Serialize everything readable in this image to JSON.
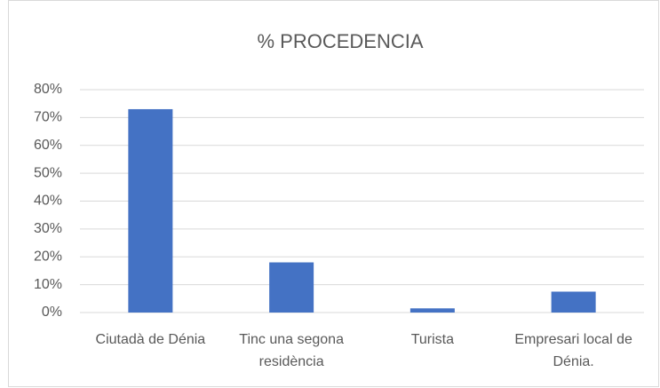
{
  "chart_data": {
    "type": "bar",
    "title": "% PROCEDENCIA",
    "categories": [
      "Ciutadà de Dénia",
      "Tinc una segona residència",
      "Turista",
      "Empresari local de Dénia."
    ],
    "values": [
      73,
      18,
      1.5,
      7.5
    ],
    "color": "#4472c4",
    "ylim": [
      0,
      80
    ],
    "yticks": [
      {
        "value": 0,
        "label": "0%"
      },
      {
        "value": 10,
        "label": "10%"
      },
      {
        "value": 20,
        "label": "20%"
      },
      {
        "value": 30,
        "label": "30%"
      },
      {
        "value": 40,
        "label": "40%"
      },
      {
        "value": 50,
        "label": "50%"
      },
      {
        "value": 60,
        "label": "60%"
      },
      {
        "value": 70,
        "label": "70%"
      },
      {
        "value": 80,
        "label": "80%"
      }
    ],
    "grid": true
  }
}
